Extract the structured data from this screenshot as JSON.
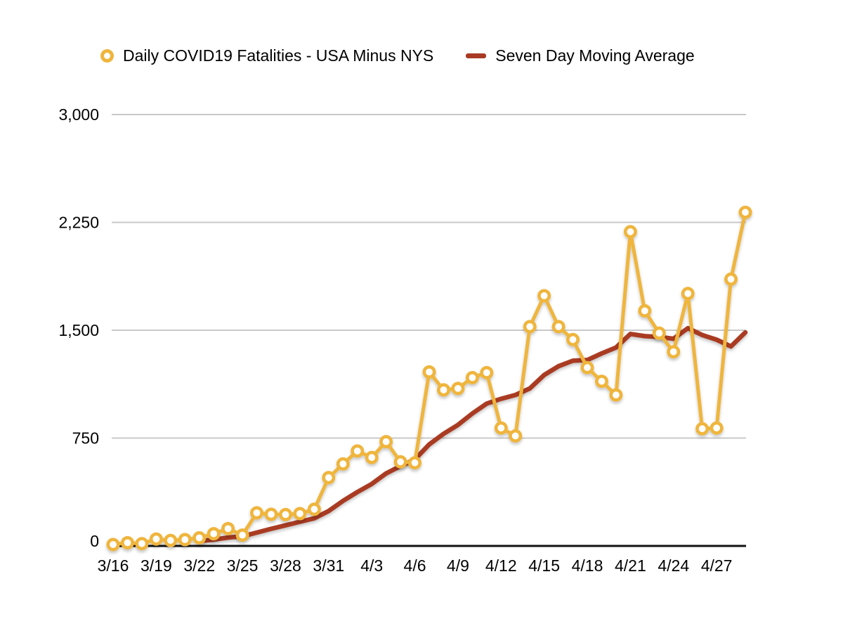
{
  "legend": [
    {
      "label": "Daily COVID19 Fatalities - USA Minus NYS",
      "marker": "ring",
      "color": "#EFB53E"
    },
    {
      "label": "Seven Day Moving Average",
      "marker": "dash",
      "color": "#A93A24"
    }
  ],
  "colors": {
    "series_fatalities": "#EFB53E",
    "series_moving_average": "#A93A24",
    "gridline": "#C9C9C9",
    "axis_line": "#111111",
    "text": "#000000",
    "background": "#FFFFFF"
  },
  "chart_data": {
    "type": "line",
    "title": "",
    "x": [
      "3/16",
      "3/17",
      "3/18",
      "3/19",
      "3/20",
      "3/21",
      "3/22",
      "3/23",
      "3/24",
      "3/25",
      "3/26",
      "3/27",
      "3/28",
      "3/29",
      "3/30",
      "3/31",
      "4/1",
      "4/2",
      "4/3",
      "4/4",
      "4/5",
      "4/6",
      "4/7",
      "4/8",
      "4/9",
      "4/10",
      "4/11",
      "4/12",
      "4/13",
      "4/14",
      "4/15",
      "4/16",
      "4/17",
      "4/18",
      "4/19",
      "4/20",
      "4/21",
      "4/22",
      "4/23",
      "4/24",
      "4/25",
      "4/26",
      "4/27",
      "4/28",
      "4/29"
    ],
    "x_tick_labels": [
      "3/16",
      "3/19",
      "3/22",
      "3/25",
      "3/28",
      "3/31",
      "4/3",
      "4/6",
      "4/9",
      "4/12",
      "4/15",
      "4/18",
      "4/21",
      "4/24",
      "4/27"
    ],
    "x_tick_every": 3,
    "y_ticks": [
      0,
      750,
      1500,
      2250,
      3000
    ],
    "y_tick_labels": [
      "0",
      "750",
      "1,500",
      "2,250",
      "3,000"
    ],
    "ylim": [
      0,
      3000
    ],
    "grid": "horizontal",
    "legend_position": "top",
    "series": [
      {
        "name": "Daily COVID19 Fatalities - USA Minus NYS",
        "color": "#EFB53E",
        "marker": "ring",
        "values": [
          10,
          22,
          16,
          48,
          38,
          44,
          56,
          85,
          120,
          75,
          230,
          220,
          218,
          225,
          255,
          475,
          570,
          660,
          615,
          725,
          585,
          578,
          1210,
          1085,
          1095,
          1170,
          1205,
          820,
          765,
          1525,
          1740,
          1525,
          1435,
          1240,
          1145,
          1050,
          2185,
          1635,
          1480,
          1350,
          1755,
          815,
          820,
          1855,
          2320
        ]
      },
      {
        "name": "Seven Day Moving Average",
        "color": "#A93A24",
        "marker": "none",
        "values": [
          null,
          null,
          null,
          null,
          null,
          null,
          33,
          44,
          58,
          67,
          93,
          119,
          143,
          168,
          192,
          243,
          313,
          375,
          431,
          504,
          555,
          601,
          706,
          780,
          842,
          921,
          990,
          1023,
          1050,
          1095,
          1189,
          1250,
          1288,
          1293,
          1339,
          1380,
          1474,
          1459,
          1453,
          1441,
          1514,
          1467,
          1434,
          1387,
          1485
        ]
      }
    ]
  }
}
